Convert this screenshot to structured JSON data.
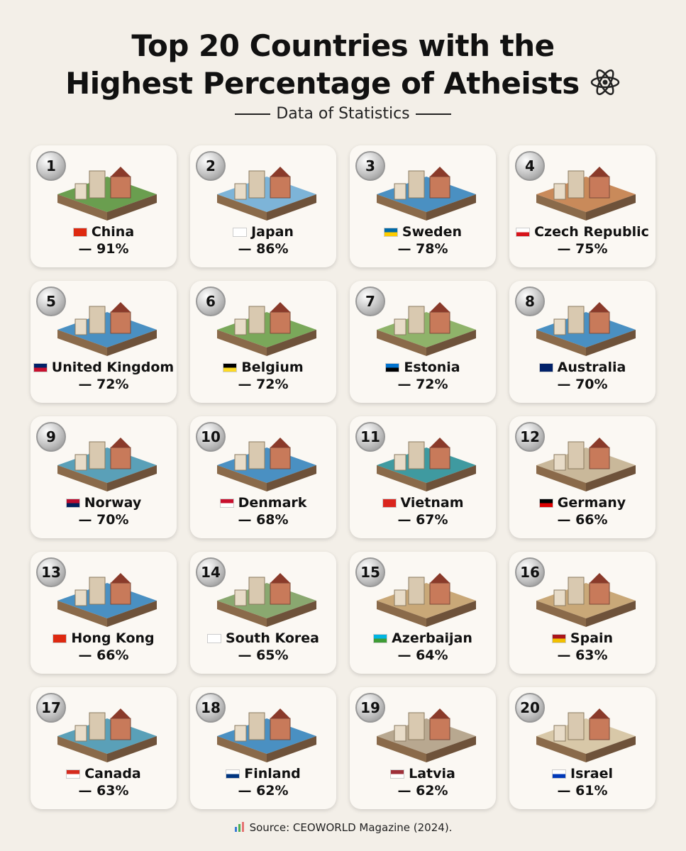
{
  "header": {
    "title_line1": "Top 20 Countries with the",
    "title_line2": "Highest Percentage of Atheists",
    "subtitle": "Data of Statistics"
  },
  "items": [
    {
      "rank": "1",
      "name": "China",
      "percent": "— 91%"
    },
    {
      "rank": "2",
      "name": "Japan",
      "percent": "— 86%"
    },
    {
      "rank": "3",
      "name": "Sweden",
      "percent": "— 78%"
    },
    {
      "rank": "4",
      "name": "Czech Republic",
      "percent": "— 75%"
    },
    {
      "rank": "5",
      "name": "United Kingdom",
      "percent": "— 72%"
    },
    {
      "rank": "6",
      "name": "Belgium",
      "percent": "— 72%"
    },
    {
      "rank": "7",
      "name": "Estonia",
      "percent": "— 72%"
    },
    {
      "rank": "8",
      "name": "Australia",
      "percent": "— 70%"
    },
    {
      "rank": "9",
      "name": "Norway",
      "percent": "— 70%"
    },
    {
      "rank": "10",
      "name": "Denmark",
      "percent": "— 68%"
    },
    {
      "rank": "11",
      "name": "Vietnam",
      "percent": "— 67%"
    },
    {
      "rank": "12",
      "name": "Germany",
      "percent": "— 66%"
    },
    {
      "rank": "13",
      "name": "Hong Kong",
      "percent": "— 66%"
    },
    {
      "rank": "14",
      "name": "South Korea",
      "percent": "— 65%"
    },
    {
      "rank": "15",
      "name": "Azerbaijan",
      "percent": "— 64%"
    },
    {
      "rank": "16",
      "name": "Spain",
      "percent": "— 63%"
    },
    {
      "rank": "17",
      "name": "Canada",
      "percent": "— 63%"
    },
    {
      "rank": "18",
      "name": "Finland",
      "percent": "— 62%"
    },
    {
      "rank": "19",
      "name": "Latvia",
      "percent": "— 62%"
    },
    {
      "rank": "20",
      "name": "Israel",
      "percent": "— 61%"
    }
  ],
  "footer": {
    "source": "Source: CEOWORLD Magazine (2024)."
  }
}
